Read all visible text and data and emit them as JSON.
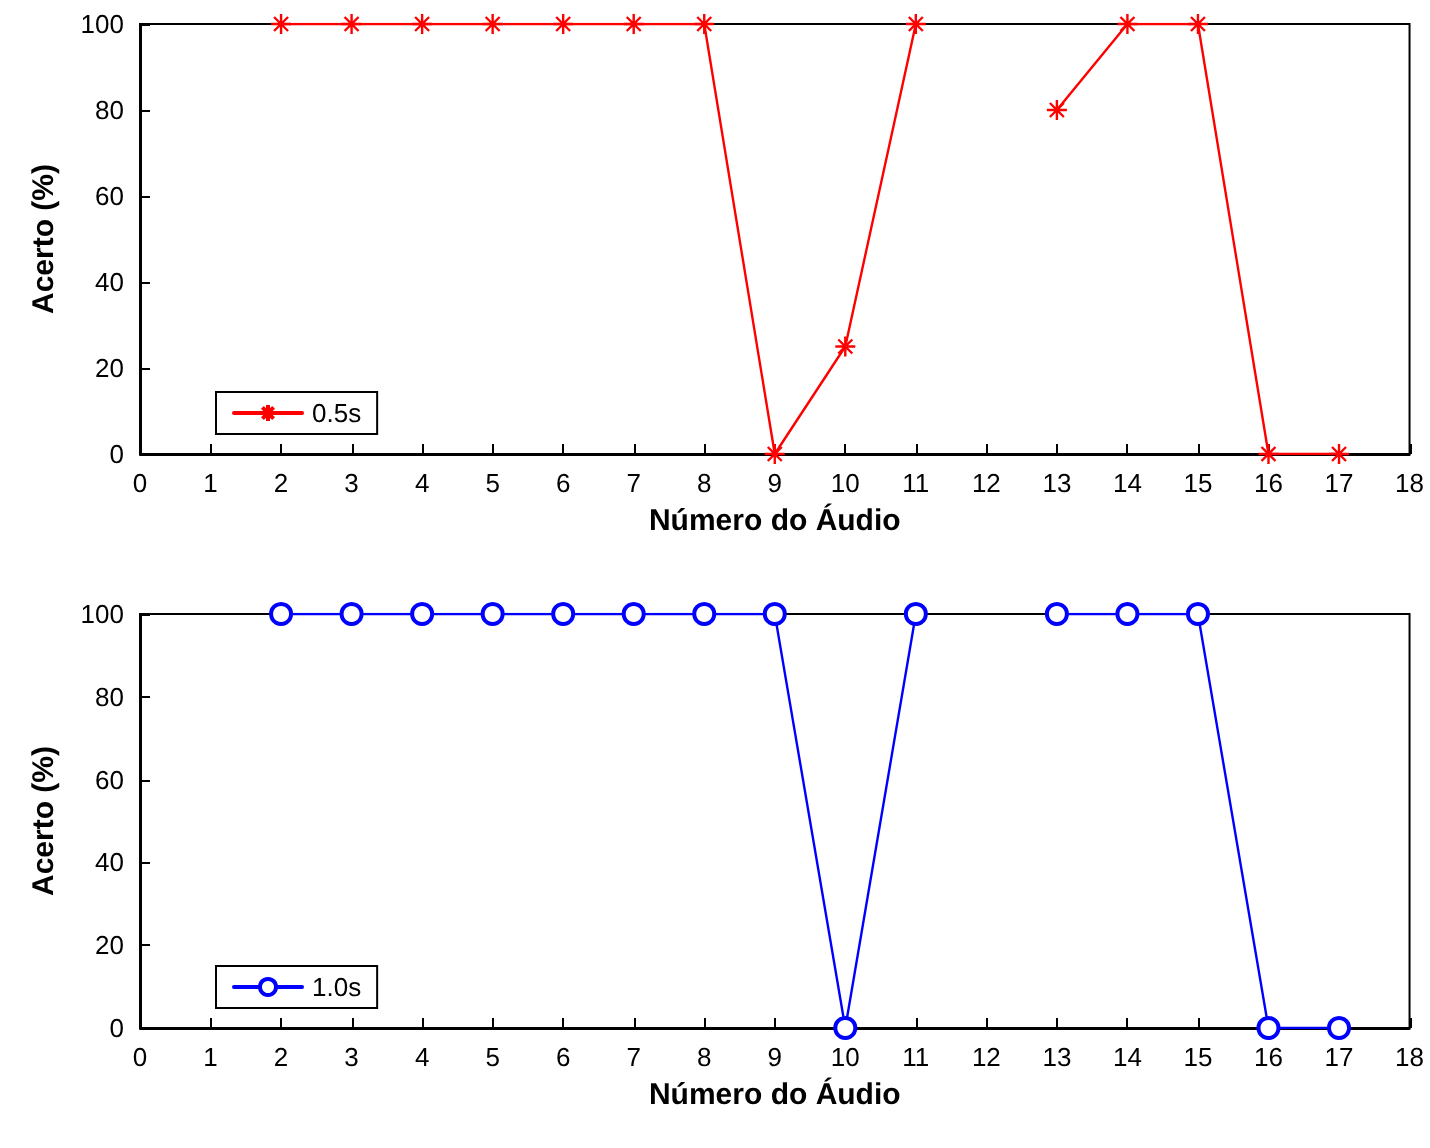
{
  "chart_data": [
    {
      "type": "line",
      "xlabel": "Número do Áudio",
      "ylabel": "Acerto (%)",
      "x": [
        2,
        3,
        4,
        5,
        6,
        7,
        8,
        9,
        10,
        11,
        12,
        13,
        14,
        15,
        16,
        17
      ],
      "series": [
        {
          "name": "0.5s",
          "color": "#ff0000",
          "values": [
            100,
            100,
            100,
            100,
            100,
            100,
            100,
            0,
            25,
            100,
            null,
            80,
            100,
            100,
            0,
            0
          ]
        }
      ],
      "xlim": [
        0,
        18
      ],
      "xticks": [
        0,
        1,
        2,
        3,
        4,
        5,
        6,
        7,
        8,
        9,
        10,
        11,
        12,
        13,
        14,
        15,
        16,
        17,
        18
      ],
      "ylim": [
        0,
        100
      ],
      "yticks": [
        0,
        20,
        40,
        60,
        80,
        100
      ],
      "grid": false,
      "legend": "bottom left",
      "marker": "cross",
      "line_style": "solid"
    },
    {
      "type": "line",
      "xlabel": "Número do Áudio",
      "ylabel": "Acerto (%)",
      "x": [
        2,
        3,
        4,
        5,
        6,
        7,
        8,
        9,
        10,
        11,
        12,
        13,
        14,
        15,
        16,
        17
      ],
      "series": [
        {
          "name": "1.0s",
          "color": "#0000ff",
          "values": [
            100,
            100,
            100,
            100,
            100,
            100,
            100,
            100,
            0,
            100,
            null,
            100,
            100,
            100,
            0,
            0
          ]
        }
      ],
      "xlim": [
        0,
        18
      ],
      "xticks": [
        0,
        1,
        2,
        3,
        4,
        5,
        6,
        7,
        8,
        9,
        10,
        11,
        12,
        13,
        14,
        15,
        16,
        17,
        18
      ],
      "ylim": [
        0,
        100
      ],
      "yticks": [
        0,
        20,
        40,
        60,
        80,
        100
      ],
      "grid": false,
      "legend": "bottom left",
      "marker": "circle",
      "line_style": "solid"
    }
  ]
}
